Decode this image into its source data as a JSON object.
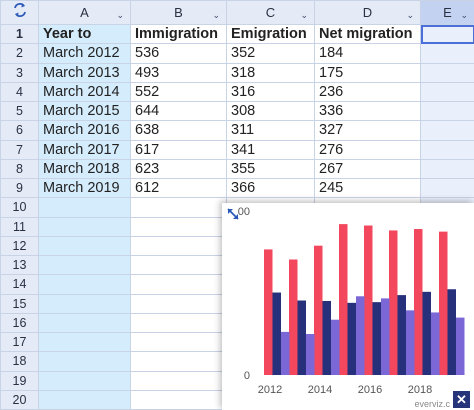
{
  "toolbar": {
    "swap_icon": "swap-arrows-icon"
  },
  "columns": [
    "A",
    "B",
    "C",
    "D",
    "E"
  ],
  "rows": [
    [
      "Year to",
      "Immigration",
      "Emigration",
      "Net migration",
      ""
    ],
    [
      "March 2012",
      "536",
      "352",
      "184",
      ""
    ],
    [
      "March 2013",
      "493",
      "318",
      "175",
      ""
    ],
    [
      "March 2014",
      "552",
      "316",
      "236",
      ""
    ],
    [
      "March 2015",
      "644",
      "308",
      "336",
      ""
    ],
    [
      "March 2016",
      "638",
      "311",
      "327",
      ""
    ],
    [
      "March 2017",
      "617",
      "341",
      "276",
      ""
    ],
    [
      "March 2018",
      "623",
      "355",
      "267",
      ""
    ],
    [
      "March 2019",
      "612",
      "366",
      "245",
      ""
    ],
    [
      "",
      "",
      "",
      "",
      ""
    ],
    [
      "",
      "",
      "",
      "",
      ""
    ],
    [
      "",
      "",
      "",
      "",
      ""
    ],
    [
      "",
      "",
      "",
      "",
      ""
    ],
    [
      "",
      "",
      "",
      "",
      ""
    ],
    [
      "",
      "",
      "",
      "",
      ""
    ],
    [
      "",
      "",
      "",
      "",
      ""
    ],
    [
      "",
      "",
      "",
      "",
      ""
    ],
    [
      "",
      "",
      "",
      "",
      ""
    ],
    [
      "",
      "",
      "",
      "",
      ""
    ],
    [
      "",
      "",
      "",
      "",
      ""
    ]
  ],
  "chart_panel": {
    "credit": "everviz.c",
    "close_label": "✕",
    "expand_icon": "expand-arrows-icon"
  },
  "chart_data": {
    "type": "bar",
    "categories": [
      "2012",
      "2013",
      "2014",
      "2015",
      "2016",
      "2017",
      "2018",
      "2019"
    ],
    "series": [
      {
        "name": "Immigration",
        "values": [
          536,
          493,
          552,
          644,
          638,
          617,
          623,
          612
        ],
        "color": "#f2475d"
      },
      {
        "name": "Emigration",
        "values": [
          352,
          318,
          316,
          308,
          311,
          341,
          355,
          366
        ],
        "color": "#27307a"
      },
      {
        "name": "Net migration",
        "values": [
          184,
          175,
          236,
          336,
          327,
          276,
          267,
          245
        ],
        "color": "#7b67d6"
      }
    ],
    "ylim": [
      0,
      700
    ],
    "y_tick_labels": [
      "0",
      "00"
    ],
    "x_tick_labels": [
      "2012",
      "2014",
      "2016",
      "2018"
    ],
    "xlabel": "",
    "ylabel": "",
    "grid": false,
    "legend": "none"
  }
}
